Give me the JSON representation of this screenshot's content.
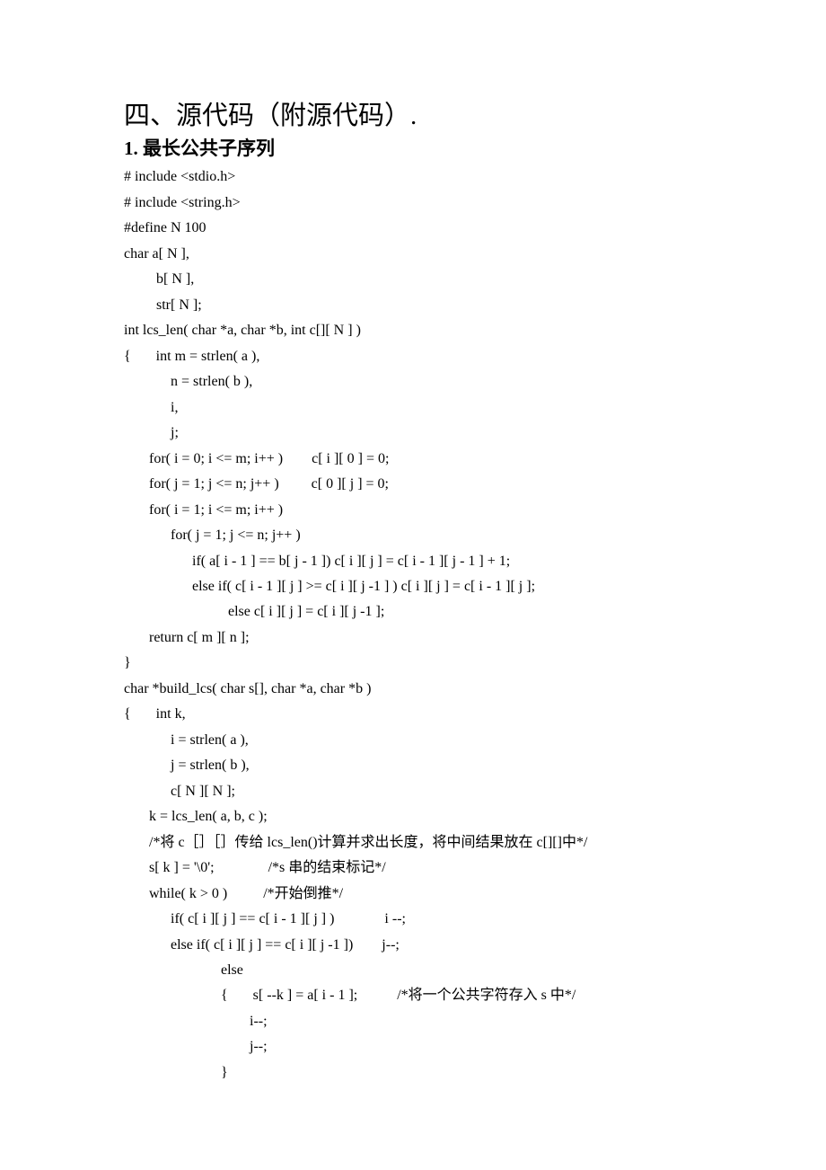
{
  "heading1": "四、源代码（附源代码）.",
  "heading2": "1. 最长公共子序列",
  "code_lines": [
    "# include <stdio.h>",
    "# include <string.h>",
    "#define N 100",
    "char a[ N ],",
    "         b[ N ],",
    "         str[ N ];",
    "int lcs_len( char *a, char *b, int c[][ N ] )",
    "{       int m = strlen( a ),",
    "             n = strlen( b ),",
    "             i,",
    "             j;",
    "       for( i = 0; i <= m; i++ )        c[ i ][ 0 ] = 0;",
    "       for( j = 1; j <= n; j++ )         c[ 0 ][ j ] = 0;",
    "       for( i = 1; i <= m; i++ )",
    "             for( j = 1; j <= n; j++ )",
    "                   if( a[ i - 1 ] == b[ j - 1 ]) c[ i ][ j ] = c[ i - 1 ][ j - 1 ] + 1;",
    "                   else if( c[ i - 1 ][ j ] >= c[ i ][ j -1 ] ) c[ i ][ j ] = c[ i - 1 ][ j ];",
    "                             else c[ i ][ j ] = c[ i ][ j -1 ];",
    "       return c[ m ][ n ];",
    "}",
    "char *build_lcs( char s[], char *a, char *b )",
    "{       int k,",
    "             i = strlen( a ),",
    "             j = strlen( b ),",
    "             c[ N ][ N ];",
    "       k = lcs_len( a, b, c );",
    "       /*将 c［］［］传给 lcs_len()计算并求出长度，将中间结果放在 c[][]中*/",
    "       s[ k ] = '\\0';               /*s 串的结束标记*/",
    "       while( k > 0 )          /*开始倒推*/",
    "             if( c[ i ][ j ] == c[ i - 1 ][ j ] )              i --;",
    "             else if( c[ i ][ j ] == c[ i ][ j -1 ])        j--;",
    "                           else",
    "                           {       s[ --k ] = a[ i - 1 ];           /*将一个公共字符存入 s 中*/",
    "                                   i--;",
    "                                   j--;",
    "                           }"
  ]
}
